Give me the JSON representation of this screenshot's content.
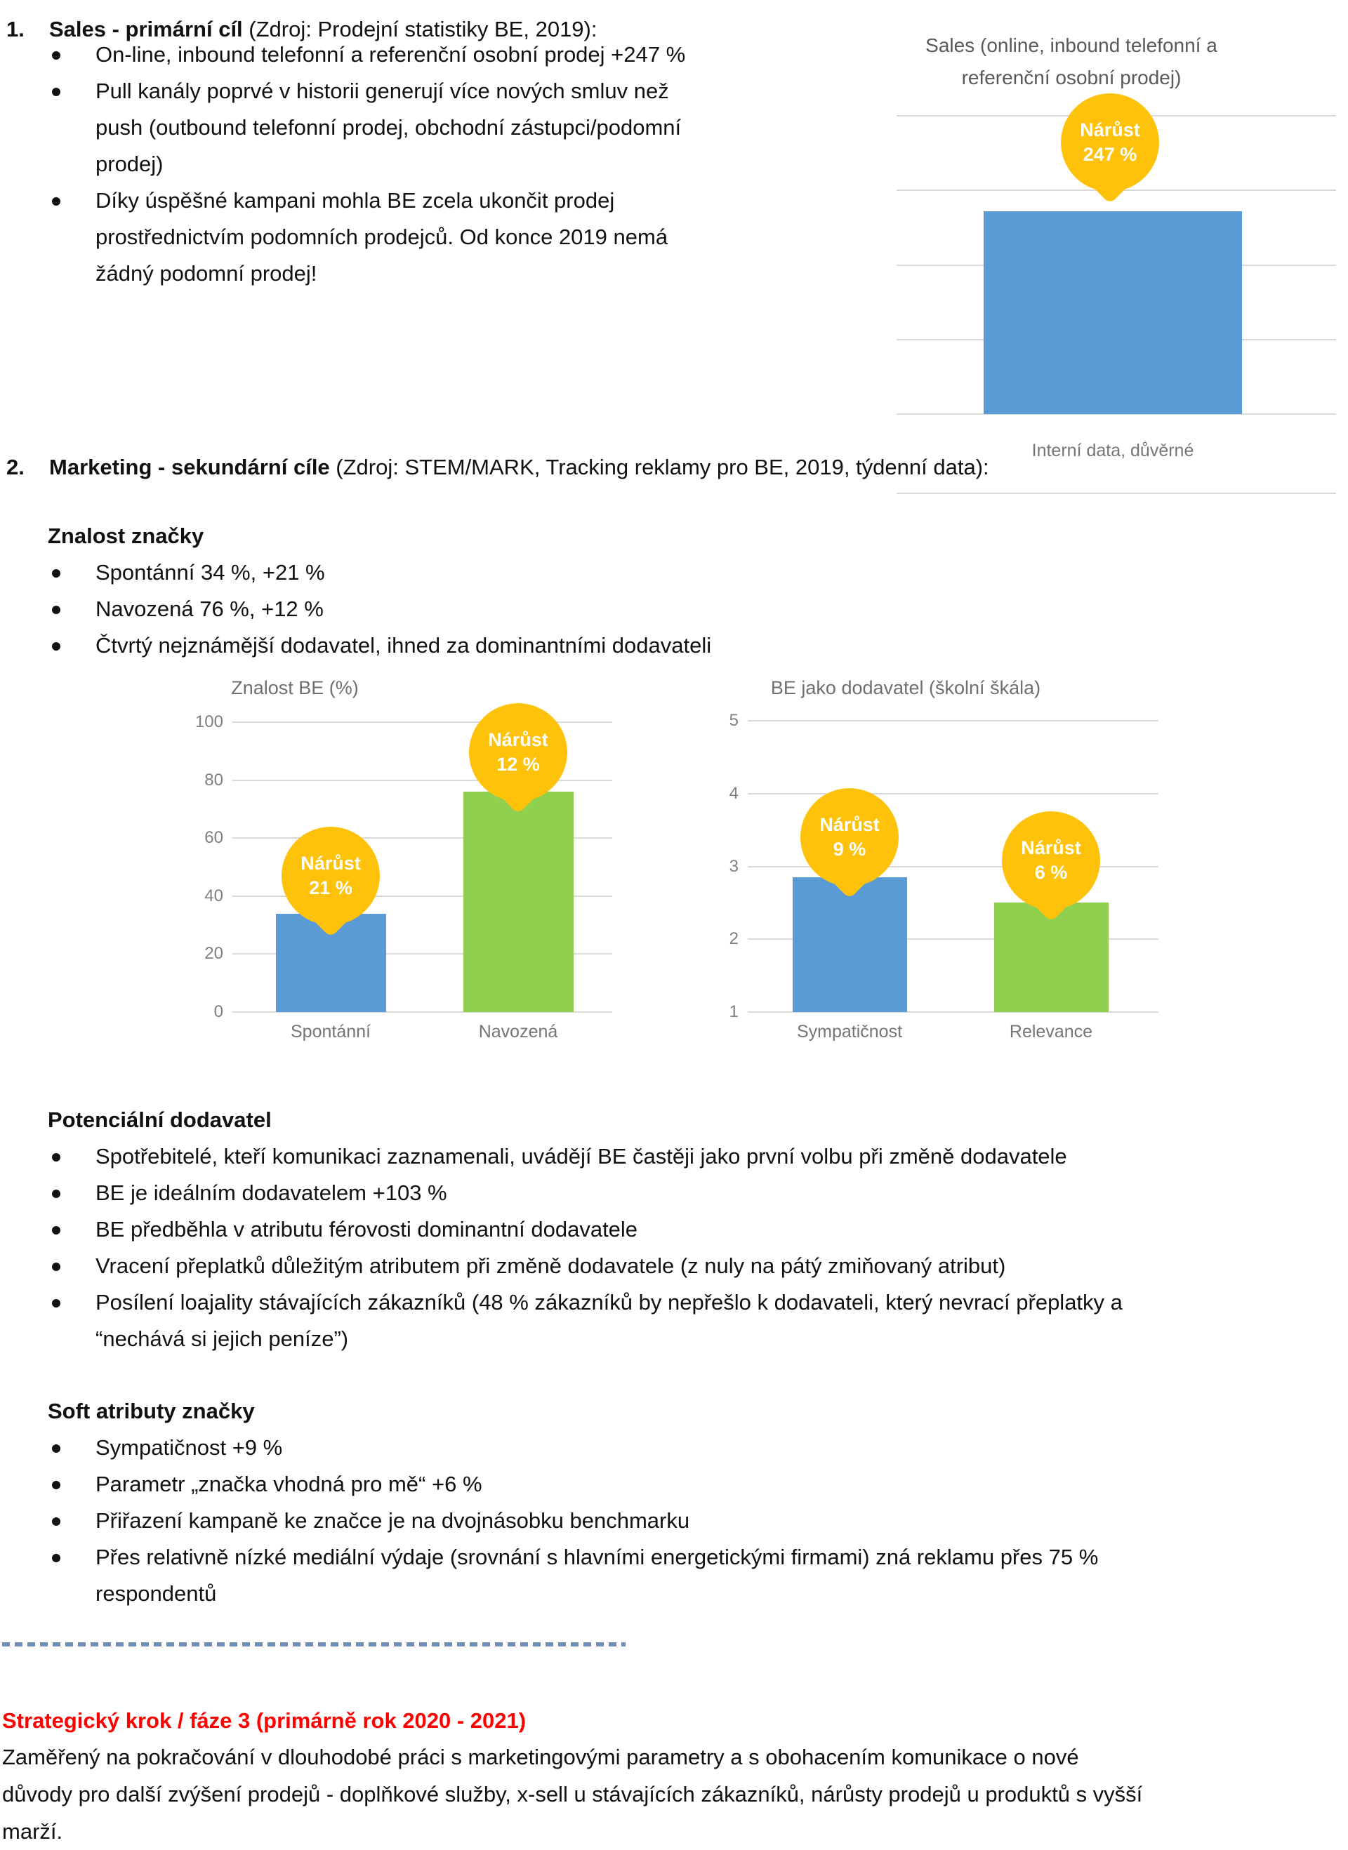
{
  "colors": {
    "bar_blue": "#5B9BD5",
    "bar_green": "#8FD14F",
    "pin_yellow": "#FFC20A",
    "heading_red": "#FF0000",
    "separator_blue": "#6F8EB8",
    "gridline_gray": "#D9D9D9",
    "chart_text_gray": "#757575"
  },
  "section1": {
    "number": "1.",
    "title": "Sales - primární cíl",
    "title_suffix": " (Zdroj: Prodejní statistiky BE, 2019):",
    "bullets": [
      [
        "On-line, inbound telefonní a referenční osobní prodej +247 %"
      ],
      [
        "Pull kanály poprvé v historii generují více nových smluv než",
        "push (outbound telefonní prodej, obchodní zástupci/podomní",
        "prodej)"
      ],
      [
        "Díky úspěšné kampani mohla BE zcela ukončit prodej",
        "prostřednictvím podomních prodejců. Od konce 2019 nemá",
        "žádný podomní prodej!"
      ]
    ]
  },
  "section2": {
    "number": "2.",
    "title": "Marketing - sekundární cíle",
    "title_suffix": " (Zdroj: STEM/MARK, Tracking reklamy pro BE, 2019, týdenní data):"
  },
  "brand_awareness": {
    "heading": "Znalost značky",
    "bullets": [
      "Spontánní 34 %, +21 %",
      "Navozená 76 %, +12 %",
      "Čtvrtý nejznámější dodavatel, ihned za dominantními dodavateli"
    ]
  },
  "potential_supplier": {
    "heading": "Potenciální dodavatel",
    "bullets": [
      [
        "Spotřebitelé, kteří komunikaci zaznamenali, uvádějí BE častěji jako první volbu při změně dodavatele"
      ],
      [
        "BE je ideálním dodavatelem +103 %"
      ],
      [
        "BE předběhla v atributu férovosti dominantní dodavatele"
      ],
      [
        "Vracení přeplatků důležitým atributem při změně dodavatele (z nuly na pátý zmiňovaný atribut)"
      ],
      [
        "Posílení loajality stávajících zákazníků (48 % zákazníků by nepřešlo k dodavateli, který nevrací přeplatky a",
        "“nechává si jejich peníze”)"
      ]
    ]
  },
  "soft_attributes": {
    "heading": "Soft atributy značky",
    "bullets": [
      [
        "Sympatičnost +9 %"
      ],
      [
        "Parametr „značka vhodná pro mě“ +6 %"
      ],
      [
        "Přiřazení kampaně ke značce je na dvojnásobku benchmarku"
      ],
      [
        "Přes relativně nízké mediální výdaje (srovnání s hlavními energetickými firmami) zná reklamu přes 75 %",
        "respondentů"
      ]
    ]
  },
  "strategy": {
    "heading": "Strategický krok / fáze 3 (primárně rok 2020 - 2021)",
    "paragraph_lines": [
      "Zaměřený na pokračování v dlouhodobé práci s marketingovými parametry a s obohacením komunikace o nové",
      "důvody pro další zvýšení prodejů - doplňkové služby, x-sell u stávajících zákazníků, nárůsty prodejů u produktů s vyšší",
      "marží."
    ]
  },
  "chart_data": [
    {
      "id": "sales",
      "type": "bar",
      "title": "Sales (online, inbound telefonní a referenční osobní prodej)",
      "title_lines": [
        "Sales (online, inbound telefonní a",
        "referenční osobní prodej)"
      ],
      "categories": [
        "Interní data, důvěrné"
      ],
      "values": [
        68
      ],
      "value_note": "y-axis unlabeled; bar drawn at ~68% of plot height; annotation gives growth",
      "annotations": [
        {
          "label": "Nárůst",
          "value": "247 %"
        }
      ],
      "bar_colors": [
        "#5B9BD5"
      ],
      "ylim": [
        0,
        100
      ],
      "yticks": [],
      "grid": true,
      "legend": false
    },
    {
      "id": "znalost-be",
      "type": "bar",
      "title": "Znalost BE (%)",
      "categories": [
        "Spontánní",
        "Navozená"
      ],
      "values": [
        34,
        76
      ],
      "annotations": [
        {
          "label": "Nárůst",
          "value": "21 %"
        },
        {
          "label": "Nárůst",
          "value": "12 %"
        }
      ],
      "bar_colors": [
        "#5B9BD5",
        "#8FD14F"
      ],
      "ylim": [
        0,
        100
      ],
      "yticks": [
        100,
        80,
        60,
        40,
        20,
        0
      ],
      "grid": true,
      "legend": false
    },
    {
      "id": "be-jako-dodavatel",
      "type": "bar",
      "title": "BE jako dodavatel (školní škála)",
      "categories": [
        "Sympatičnost",
        "Relevance"
      ],
      "values": [
        2.85,
        2.5
      ],
      "annotations": [
        {
          "label": "Nárůst",
          "value": "9 %"
        },
        {
          "label": "Nárůst",
          "value": "6 %"
        }
      ],
      "bar_colors": [
        "#5B9BD5",
        "#8FD14F"
      ],
      "ylim": [
        1,
        5
      ],
      "yticks": [
        5,
        4,
        3,
        2,
        1
      ],
      "grid": true,
      "legend": false
    }
  ]
}
